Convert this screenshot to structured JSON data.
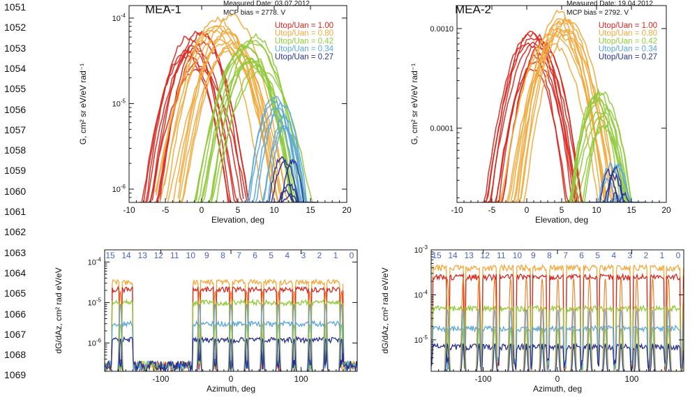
{
  "line_numbers": [
    "1051",
    "1052",
    "1053",
    "1054",
    "1055",
    "1056",
    "1057",
    "1058",
    "1059",
    "1060",
    "1061",
    "1062",
    "1063",
    "1064",
    "1065",
    "1066",
    "1067",
    "1068",
    "1069"
  ],
  "colors": {
    "r100": "#d8261d",
    "r080": "#f2a93b",
    "r042": "#8fca3b",
    "r034": "#5aa7d8",
    "r027": "#252f93",
    "orange_line": "#f07a1c",
    "sector_labels": "#4a62c8"
  },
  "chart_data": [
    {
      "id": "mea1-elevation",
      "type": "line",
      "panel_title": "MEA-1",
      "annotations": [
        "Measured Date: 03.07.2012",
        "MCP bias = 2778. V"
      ],
      "xlabel": "Elevation, deg",
      "ylabel": "G, cm² sr eV/eV rad⁻¹",
      "x_ticks": [
        "-10",
        "-5",
        "0",
        "5",
        "10",
        "15",
        "20"
      ],
      "x_range": [
        -10,
        20
      ],
      "y_scale": "log",
      "y_range": [
        7e-07,
        0.00014
      ],
      "y_ticks": [
        {
          "v": 0.0001,
          "base": "10",
          "exp": "-4"
        },
        {
          "v": 1e-05,
          "base": "10",
          "exp": "-5"
        },
        {
          "v": 1e-06,
          "base": "10",
          "exp": "-6"
        }
      ],
      "legend_position": "top-right",
      "series": [
        {
          "name": "Utop/Uan = 1.00",
          "color": "r100",
          "center": -1,
          "peak": 7e-05,
          "sigma": 2.2,
          "n": 10
        },
        {
          "name": "Utop/Uan = 0.80",
          "color": "r080",
          "center": 3,
          "peak": 0.00011,
          "sigma": 2.5,
          "n": 12
        },
        {
          "name": "Utop/Uan = 0.42",
          "color": "r042",
          "center": 7,
          "peak": 6.5e-05,
          "sigma": 2.3,
          "n": 12
        },
        {
          "name": "Utop/Uan = 0.34",
          "color": "r034",
          "center": 11,
          "peak": 1.2e-05,
          "sigma": 1.4,
          "n": 8
        },
        {
          "name": "Utop/Uan = 0.27",
          "color": "r027",
          "center": 11.5,
          "peak": 2.5e-06,
          "sigma": 1.2,
          "n": 6
        }
      ]
    },
    {
      "id": "mea2-elevation",
      "type": "line",
      "panel_title": "MEA-2",
      "annotations": [
        "Measured Date: 19.04.2012",
        "MCP bias = 2792. V"
      ],
      "xlabel": "Elevation, deg",
      "ylabel": "G, cm² sr eV/eV rad⁻¹",
      "x_ticks": [
        "-10",
        "-5",
        "0",
        "5",
        "10",
        "15",
        "20"
      ],
      "x_range": [
        -10,
        20
      ],
      "y_scale": "log",
      "y_range": [
        1.8e-05,
        0.0017
      ],
      "y_ticks": [
        {
          "v": 0.001,
          "label": "0.0010"
        },
        {
          "v": 0.0001,
          "label": "0.0001"
        }
      ],
      "legend_position": "top-right",
      "series": [
        {
          "name": "Utop/Uan = 1.00",
          "color": "r100",
          "center": 1.5,
          "peak": 0.001,
          "sigma": 2.2,
          "n": 10
        },
        {
          "name": "Utop/Uan = 0.80",
          "color": "r080",
          "center": 5,
          "peak": 0.0015,
          "sigma": 2.4,
          "n": 12
        },
        {
          "name": "Utop/Uan = 0.42",
          "color": "r042",
          "center": 11,
          "peak": 0.00025,
          "sigma": 1.8,
          "n": 10
        },
        {
          "name": "Utop/Uan = 0.34",
          "color": "r034",
          "center": 12.5,
          "peak": 5e-05,
          "sigma": 1.3,
          "n": 6
        },
        {
          "name": "Utop/Uan = 0.27",
          "color": "r027",
          "center": 13,
          "peak": 4e-05,
          "sigma": 1.1,
          "n": 5
        }
      ]
    },
    {
      "id": "mea1-azimuth",
      "type": "line",
      "xlabel": "Azimuth, deg",
      "ylabel": "dG/dAz, cm² rad eV/eV",
      "x_ticks": [
        "-100",
        "0",
        "100"
      ],
      "x_range": [
        -180,
        180
      ],
      "y_scale": "log",
      "y_range": [
        2e-07,
        0.0002
      ],
      "y_ticks": [
        {
          "v": 0.0001,
          "base": "10",
          "exp": "-4"
        },
        {
          "v": 1e-05,
          "base": "10",
          "exp": "-5"
        },
        {
          "v": 1e-06,
          "base": "10",
          "exp": "-6"
        }
      ],
      "sector_labels": [
        "15",
        "14",
        "13",
        "12",
        "11",
        "10",
        "9",
        "8",
        "7",
        "6",
        "5",
        "4",
        "3",
        "2",
        "1",
        "0"
      ],
      "active_ranges": [
        [
          -170,
          -140
        ],
        [
          -55,
          160
        ]
      ],
      "series": [
        {
          "color": "r080",
          "level": 3.2e-05
        },
        {
          "color": "r100",
          "level": 2.1e-05
        },
        {
          "color": "r042",
          "level": 1e-05
        },
        {
          "color": "r034",
          "level": 3e-06
        },
        {
          "color": "r027",
          "level": 1.2e-06
        }
      ]
    },
    {
      "id": "mea2-azimuth",
      "type": "line",
      "xlabel": "Azimuth, deg",
      "ylabel": "dG/dAz, cm² rad eV/eV",
      "x_ticks": [
        "-100",
        "0",
        "100"
      ],
      "x_range": [
        -170,
        170
      ],
      "y_scale": "log",
      "y_range": [
        2e-06,
        0.001
      ],
      "y_ticks": [
        {
          "v": 0.001,
          "base": "10",
          "exp": "-3"
        },
        {
          "v": 0.0001,
          "base": "10",
          "exp": "-4"
        },
        {
          "v": 1e-05,
          "base": "10",
          "exp": "-5"
        }
      ],
      "sector_labels": [
        "15",
        "14",
        "13",
        "12",
        "11",
        "10",
        "9",
        "8",
        "7",
        "6",
        "5",
        "4",
        "3",
        "2",
        "1",
        "0"
      ],
      "active_ranges": [
        [
          -170,
          170
        ]
      ],
      "series": [
        {
          "color": "r080",
          "level": 0.0004
        },
        {
          "color": "r100",
          "level": 0.00025
        },
        {
          "color": "r042",
          "level": 5e-05
        },
        {
          "color": "r034",
          "level": 1.8e-05
        },
        {
          "color": "r027",
          "level": 7e-06
        }
      ]
    }
  ]
}
